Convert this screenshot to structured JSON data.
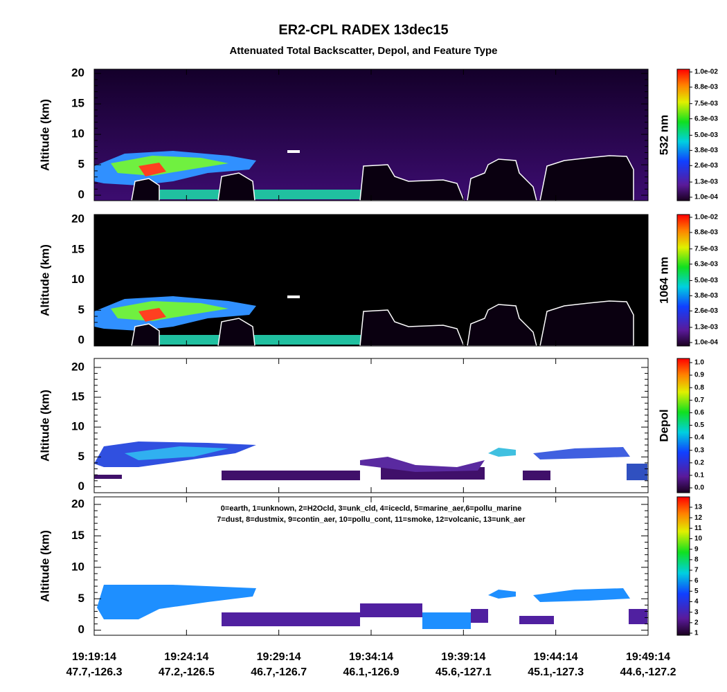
{
  "chart_data": [
    {
      "type": "curtain",
      "title": "ER2-CPL RADEX 13dec15",
      "subtitle": "Attenuated Total Backscatter, Depol, and Feature Type",
      "ylabel": "Altitude (km)",
      "ylim": [
        -0.9,
        20.7
      ],
      "yticks": [
        0,
        5,
        10,
        15,
        20
      ],
      "colorbar_label": "532 nm",
      "clim": [
        0.0001,
        0.01
      ],
      "cticks": [
        {
          "value": 0.0001,
          "label": "1.0e-04"
        },
        {
          "value": 0.0013,
          "label": "1.3e-03"
        },
        {
          "value": 0.0026,
          "label": "2.6e-03"
        },
        {
          "value": 0.0038,
          "label": "3.8e-03"
        },
        {
          "value": 0.005,
          "label": "5.0e-03"
        },
        {
          "value": 0.0063,
          "label": "6.3e-03"
        },
        {
          "value": 0.0075,
          "label": "7.5e-03"
        },
        {
          "value": 0.0088,
          "label": "8.8e-03"
        },
        {
          "value": 0.01,
          "label": "1.0e-02"
        }
      ]
    },
    {
      "type": "curtain",
      "ylabel": "Altitude (km)",
      "ylim": [
        -0.9,
        20.8
      ],
      "yticks": [
        0,
        5,
        10,
        15,
        20
      ],
      "colorbar_label": "1064 nm",
      "clim": [
        0.0001,
        0.01
      ],
      "cticks": [
        {
          "value": 0.0001,
          "label": "1.0e-04"
        },
        {
          "value": 0.0013,
          "label": "1.3e-03"
        },
        {
          "value": 0.0026,
          "label": "2.6e-03"
        },
        {
          "value": 0.0038,
          "label": "3.8e-03"
        },
        {
          "value": 0.005,
          "label": "5.0e-03"
        },
        {
          "value": 0.0063,
          "label": "6.3e-03"
        },
        {
          "value": 0.0075,
          "label": "7.5e-03"
        },
        {
          "value": 0.0088,
          "label": "8.8e-03"
        },
        {
          "value": 0.01,
          "label": "1.0e-02"
        }
      ]
    },
    {
      "type": "curtain",
      "ylabel": "Altitude (km)",
      "ylim": [
        -1.0,
        21.5
      ],
      "yticks": [
        0,
        5,
        10,
        15,
        20
      ],
      "colorbar_label": "Depol",
      "clim": [
        0,
        1
      ],
      "cticks": [
        {
          "value": 0,
          "label": "0.0"
        },
        0.1,
        0.2,
        0.3,
        0.4,
        0.5,
        0.6,
        0.7,
        0.8,
        0.9,
        {
          "value": 1,
          "label": "1.0"
        }
      ]
    },
    {
      "type": "curtain",
      "ylabel": "Altitude (km)",
      "ylim": [
        -0.8,
        21.2
      ],
      "yticks": [
        0,
        5,
        10,
        15,
        20
      ],
      "annotations": [
        "0=earth, 1=unknown, 2=H2Ocld, 3=unk_cld, 4=icecld, 5=marine_aer,6=pollu_marine",
        "7=dust, 8=dustmix, 9=contin_aer, 10=pollu_cont, 11=smoke, 12=volcanic, 13=unk_aer"
      ],
      "clim": [
        1,
        13
      ],
      "cticks": [
        1,
        2,
        3,
        4,
        5,
        6,
        7,
        8,
        9,
        10,
        11,
        12,
        13
      ],
      "categories": [
        "19:19:14",
        "19:24:14",
        "19:29:14",
        "19:34:14",
        "19:39:14",
        "19:44:14",
        "19:49:14"
      ],
      "locations": [
        "47.7,-126.3",
        "47.2,-126.5",
        "46.7,-126.7",
        "46.1,-126.9",
        "45.6,-127.1",
        "45.1,-127.3",
        "44.6,-127.2"
      ]
    }
  ]
}
